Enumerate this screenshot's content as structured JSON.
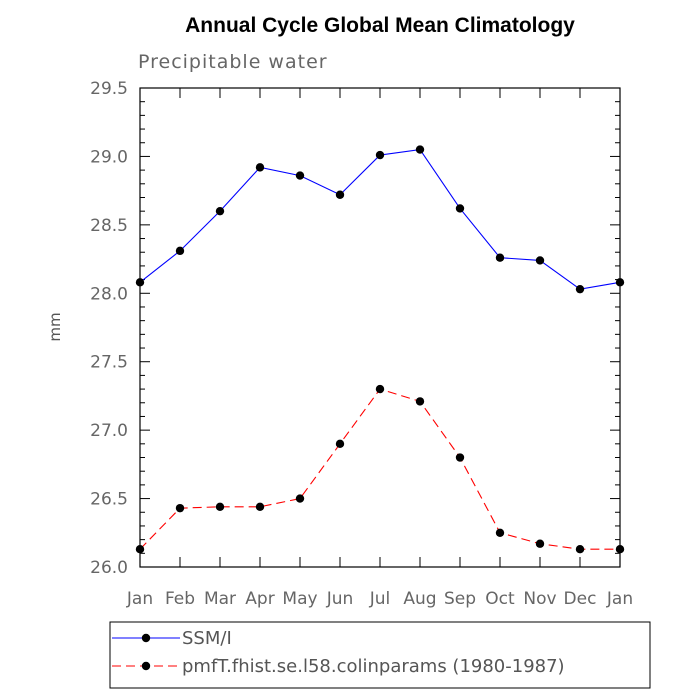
{
  "chart_data": {
    "type": "line",
    "title": "Annual Cycle Global Mean Climatology",
    "subtitle": "Precipitable water",
    "xlabel": "",
    "ylabel": "mm",
    "categories": [
      "Jan",
      "Feb",
      "Mar",
      "Apr",
      "May",
      "Jun",
      "Jul",
      "Aug",
      "Sep",
      "Oct",
      "Nov",
      "Dec",
      "Jan"
    ],
    "ylim": [
      26.0,
      29.5
    ],
    "y_ticks": [
      "26.0",
      "26.5",
      "27.0",
      "27.5",
      "28.0",
      "28.5",
      "29.0",
      "29.5"
    ],
    "grid": false,
    "legend_position": "bottom",
    "series": [
      {
        "name": "SSM/I",
        "color": "#0000ff",
        "dash": "solid",
        "values": [
          28.08,
          28.31,
          28.6,
          28.92,
          28.86,
          28.72,
          29.01,
          29.05,
          28.62,
          28.26,
          28.24,
          28.03,
          28.08
        ]
      },
      {
        "name": "pmfT.fhist.se.l58.colinparams (1980-1987)",
        "color": "#ff0000",
        "dash": "dashed",
        "values": [
          26.13,
          26.43,
          26.44,
          26.44,
          26.5,
          26.9,
          27.3,
          27.21,
          26.8,
          26.25,
          26.17,
          26.13,
          26.13
        ]
      }
    ]
  }
}
